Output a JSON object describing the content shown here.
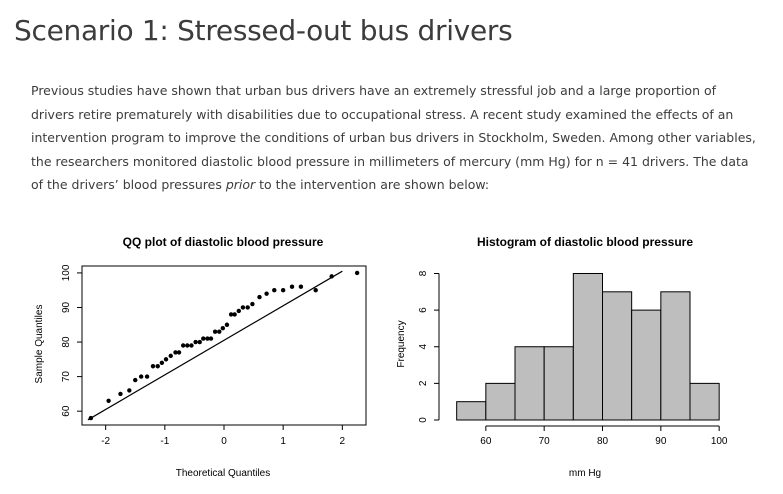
{
  "heading": "Scenario 1: Stressed-out bus drivers",
  "paragraph": {
    "before_italic": "Previous studies have shown that urban bus drivers have an extremely stressful job and a large proportion of drivers retire prematurely with disabilities due to occupational stress. A recent study examined the effects of an intervention program to improve the conditions of urban bus drivers in Stockholm, Sweden. Among other variables, the researchers monitored diastolic blood pressure in millimeters of mercury (mm Hg) for n = 41 drivers. The data of the drivers’ blood pressures ",
    "italic": "prior",
    "after_italic": " to the intervention are shown below:"
  },
  "chart_data": [
    {
      "type": "scatter",
      "title": "QQ plot of diastolic blood pressure",
      "xlabel": "Theoretical Quantiles",
      "ylabel": "Sample Quantiles",
      "xlim": [
        -2.4,
        2.4
      ],
      "ylim": [
        56,
        102
      ],
      "xticks": [
        -2,
        -1,
        0,
        1,
        2
      ],
      "yticks": [
        60,
        70,
        80,
        90,
        100
      ],
      "reference_line": {
        "x": [
          -2.3,
          2.0
        ],
        "y": [
          57.5,
          100.5
        ]
      },
      "points": [
        {
          "x": -2.25,
          "y": 58
        },
        {
          "x": -1.95,
          "y": 63
        },
        {
          "x": -1.75,
          "y": 65
        },
        {
          "x": -1.6,
          "y": 66
        },
        {
          "x": -1.5,
          "y": 69
        },
        {
          "x": -1.4,
          "y": 70
        },
        {
          "x": -1.3,
          "y": 70
        },
        {
          "x": -1.2,
          "y": 73
        },
        {
          "x": -1.12,
          "y": 73
        },
        {
          "x": -1.05,
          "y": 74
        },
        {
          "x": -0.98,
          "y": 75
        },
        {
          "x": -0.9,
          "y": 76
        },
        {
          "x": -0.82,
          "y": 77
        },
        {
          "x": -0.76,
          "y": 77
        },
        {
          "x": -0.69,
          "y": 79
        },
        {
          "x": -0.62,
          "y": 79
        },
        {
          "x": -0.55,
          "y": 79
        },
        {
          "x": -0.48,
          "y": 80
        },
        {
          "x": -0.41,
          "y": 80
        },
        {
          "x": -0.35,
          "y": 81
        },
        {
          "x": -0.28,
          "y": 81
        },
        {
          "x": -0.22,
          "y": 81
        },
        {
          "x": -0.15,
          "y": 83
        },
        {
          "x": -0.08,
          "y": 83
        },
        {
          "x": -0.02,
          "y": 84
        },
        {
          "x": 0.05,
          "y": 85
        },
        {
          "x": 0.12,
          "y": 88
        },
        {
          "x": 0.18,
          "y": 88
        },
        {
          "x": 0.25,
          "y": 89
        },
        {
          "x": 0.32,
          "y": 90
        },
        {
          "x": 0.4,
          "y": 90
        },
        {
          "x": 0.48,
          "y": 91
        },
        {
          "x": 0.6,
          "y": 93
        },
        {
          "x": 0.72,
          "y": 94
        },
        {
          "x": 0.85,
          "y": 95
        },
        {
          "x": 1.0,
          "y": 95
        },
        {
          "x": 1.15,
          "y": 96
        },
        {
          "x": 1.3,
          "y": 96
        },
        {
          "x": 1.55,
          "y": 95
        },
        {
          "x": 1.82,
          "y": 99
        },
        {
          "x": 2.25,
          "y": 100
        }
      ]
    },
    {
      "type": "bar",
      "title": "Histogram of diastolic blood pressure",
      "xlabel": "mm Hg",
      "ylabel": "Frequency",
      "bin_edges": [
        55,
        60,
        65,
        70,
        75,
        80,
        85,
        90,
        95,
        100
      ],
      "values": [
        1,
        2,
        4,
        4,
        8,
        7,
        6,
        7,
        2
      ],
      "xlim": [
        53,
        101
      ],
      "ylim": [
        0,
        8.3
      ],
      "xticks": [
        60,
        70,
        80,
        90,
        100
      ],
      "yticks": [
        0,
        2,
        4,
        6,
        8
      ],
      "bar_color": "#bebebe"
    }
  ]
}
